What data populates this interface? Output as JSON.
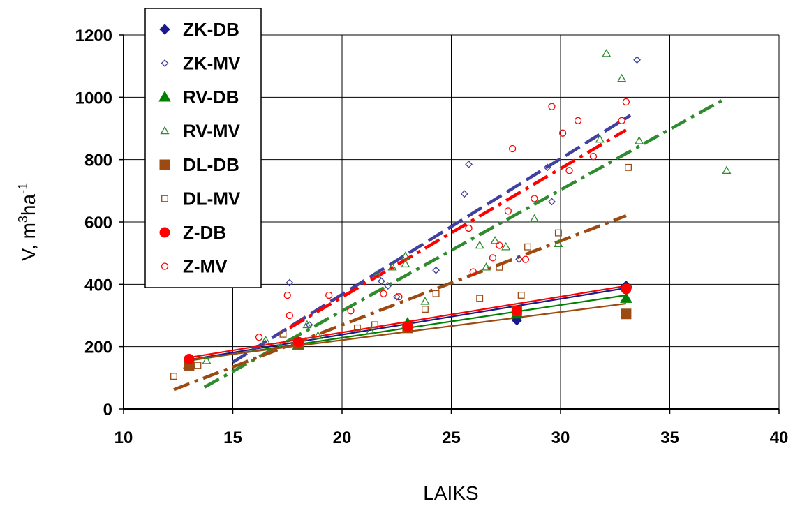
{
  "chart_data": {
    "type": "scatter",
    "title": "",
    "xlabel": "LAIKS",
    "ylabel": {
      "base": "V, m",
      "sup1": "3",
      "mid": "ha",
      "sup2": "-1"
    },
    "xlim": [
      10,
      40
    ],
    "ylim": [
      0,
      1200
    ],
    "x_ticks": [
      10,
      15,
      20,
      25,
      30,
      35,
      40
    ],
    "y_ticks": [
      0,
      200,
      400,
      600,
      800,
      1000,
      1200
    ],
    "grid": true,
    "legend_position": "top-left",
    "series": [
      {
        "name": "ZK-DB",
        "marker": "diamond",
        "filled": true,
        "color": "#1a1a8c",
        "points": [
          [
            13,
            150
          ],
          [
            18,
            215
          ],
          [
            23,
            265
          ],
          [
            28,
            285
          ],
          [
            33,
            395
          ]
        ],
        "trend": {
          "style": "solid",
          "x": [
            13,
            33
          ],
          "y": [
            158,
            388
          ]
        }
      },
      {
        "name": "ZK-MV",
        "marker": "diamond",
        "filled": false,
        "color": "#4040a0",
        "points": [
          [
            17.6,
            405
          ],
          [
            18.5,
            270
          ],
          [
            21.8,
            410
          ],
          [
            22.1,
            395
          ],
          [
            22.5,
            360
          ],
          [
            24.3,
            445
          ],
          [
            25.6,
            690
          ],
          [
            25.8,
            785
          ],
          [
            28.1,
            480
          ],
          [
            29.4,
            775
          ],
          [
            29.6,
            665
          ],
          [
            33.5,
            1120
          ]
        ],
        "trend": {
          "style": "dashed",
          "x": [
            15,
            33.2
          ],
          "y": [
            150,
            942
          ]
        }
      },
      {
        "name": "RV-DB",
        "marker": "triangle",
        "filled": true,
        "color": "#008000",
        "points": [
          [
            13,
            145
          ],
          [
            18,
            205
          ],
          [
            23,
            275
          ],
          [
            28,
            305
          ],
          [
            33,
            355
          ]
        ],
        "trend": {
          "style": "solid",
          "x": [
            13,
            33
          ],
          "y": [
            155,
            365
          ]
        }
      },
      {
        "name": "RV-MV",
        "marker": "triangle",
        "filled": false,
        "color": "#2e8b2e",
        "points": [
          [
            13.8,
            155
          ],
          [
            16.5,
            220
          ],
          [
            18.4,
            270
          ],
          [
            18.9,
            235
          ],
          [
            21.3,
            250
          ],
          [
            21.6,
            430
          ],
          [
            22.3,
            455
          ],
          [
            22.9,
            490
          ],
          [
            22.9,
            465
          ],
          [
            23.8,
            345
          ],
          [
            26.3,
            525
          ],
          [
            26.6,
            455
          ],
          [
            27,
            540
          ],
          [
            27.5,
            520
          ],
          [
            28.8,
            610
          ],
          [
            29.9,
            530
          ],
          [
            31.8,
            865
          ],
          [
            32.1,
            1140
          ],
          [
            32.8,
            1060
          ],
          [
            33.6,
            860
          ],
          [
            37.6,
            765
          ]
        ],
        "trend": {
          "style": "dash-dot",
          "x": [
            13.7,
            37.6
          ],
          "y": [
            70,
            998
          ]
        }
      },
      {
        "name": "DL-DB",
        "marker": "square",
        "filled": true,
        "color": "#9c4a12",
        "points": [
          [
            13,
            140
          ],
          [
            18,
            210
          ],
          [
            23,
            260
          ],
          [
            28,
            315
          ],
          [
            33,
            305
          ]
        ],
        "trend": {
          "style": "solid",
          "x": [
            13,
            33
          ],
          "y": [
            158,
            338
          ]
        }
      },
      {
        "name": "DL-MV",
        "marker": "square",
        "filled": false,
        "color": "#9c4a12",
        "points": [
          [
            12.3,
            105
          ],
          [
            13.4,
            140
          ],
          [
            17.3,
            240
          ],
          [
            20.7,
            260
          ],
          [
            21.5,
            270
          ],
          [
            23.8,
            320
          ],
          [
            24.3,
            370
          ],
          [
            26.3,
            355
          ],
          [
            27.2,
            455
          ],
          [
            28.2,
            365
          ],
          [
            28.5,
            520
          ],
          [
            29.9,
            565
          ],
          [
            33.1,
            775
          ]
        ],
        "trend": {
          "style": "dash-dot",
          "x": [
            12.3,
            33
          ],
          "y": [
            62,
            620
          ]
        }
      },
      {
        "name": "Z-DB",
        "marker": "circle",
        "filled": true,
        "color": "#ff0000",
        "points": [
          [
            13,
            160
          ],
          [
            18,
            215
          ],
          [
            23,
            265
          ],
          [
            28,
            315
          ],
          [
            33,
            385
          ]
        ],
        "trend": {
          "style": "solid",
          "x": [
            13,
            33
          ],
          "y": [
            165,
            395
          ]
        }
      },
      {
        "name": "Z-MV",
        "marker": "circle",
        "filled": false,
        "color": "#ff0000",
        "points": [
          [
            16.2,
            230
          ],
          [
            17.5,
            365
          ],
          [
            17.6,
            300
          ],
          [
            19.4,
            365
          ],
          [
            20.4,
            315
          ],
          [
            21.9,
            370
          ],
          [
            22.6,
            360
          ],
          [
            25.8,
            580
          ],
          [
            26,
            440
          ],
          [
            26.9,
            485
          ],
          [
            27.2,
            525
          ],
          [
            27.6,
            635
          ],
          [
            27.8,
            835
          ],
          [
            28.4,
            480
          ],
          [
            28.8,
            675
          ],
          [
            29.6,
            970
          ],
          [
            30.1,
            885
          ],
          [
            30.4,
            765
          ],
          [
            30.8,
            925
          ],
          [
            31.5,
            810
          ],
          [
            32.8,
            925
          ],
          [
            33,
            985
          ],
          [
            33.1,
            390
          ]
        ],
        "trend": {
          "style": "dash-dot",
          "x": [
            17.6,
            33
          ],
          "y": [
            260,
            895
          ]
        }
      }
    ]
  }
}
